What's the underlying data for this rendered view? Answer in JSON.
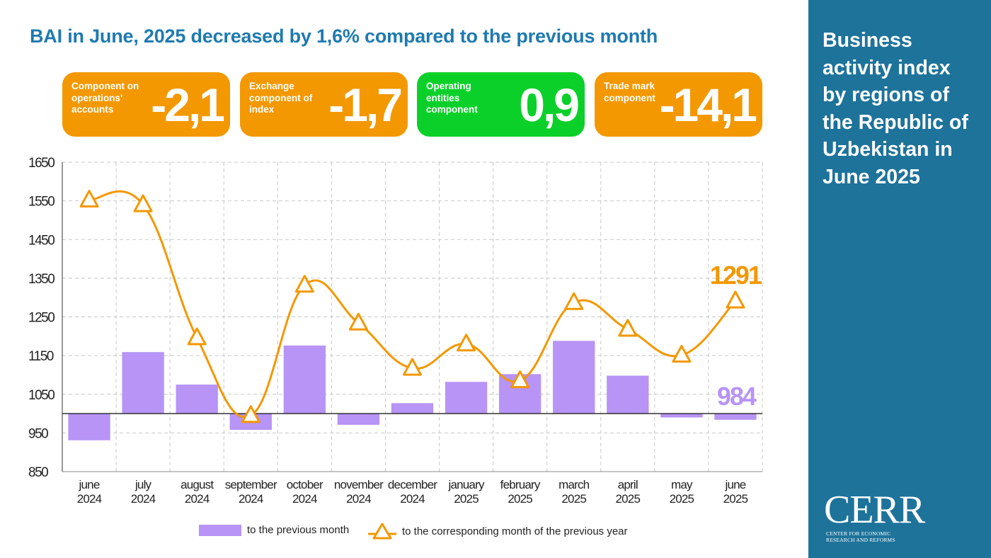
{
  "headline": "BAI in June, 2025 decreased by 1,6% compared to the previous month",
  "cards": [
    {
      "label": "Component on operations' accounts",
      "value": "-2,1",
      "color": "#f39800"
    },
    {
      "label": "Exchange component of index",
      "value": "-1,7",
      "color": "#f39800"
    },
    {
      "label": "Operating entities component",
      "value": "0,9",
      "color": "#0cd02a"
    },
    {
      "label": "Trade mark component",
      "value": "-14,1",
      "color": "#f39800"
    }
  ],
  "sidebar": {
    "title": "Business activity index by regions of the Republic of Uzbekistan in June 2025",
    "background": "#1e739a",
    "logo": {
      "word": "CERR",
      "subtitle": "CENTER FOR ECONOMIC RESEARCH AND REFORMS"
    }
  },
  "legend": {
    "bars": "to the previous month",
    "line": "to the corresponding month of the previous year"
  },
  "chart_data": {
    "type": "bar",
    "categories": [
      [
        "june",
        "2024"
      ],
      [
        "july",
        "2024"
      ],
      [
        "august",
        "2024"
      ],
      [
        "september",
        "2024"
      ],
      [
        "october",
        "2024"
      ],
      [
        "november",
        "2024"
      ],
      [
        "december",
        "2024"
      ],
      [
        "january",
        "2025"
      ],
      [
        "february",
        "2025"
      ],
      [
        "march",
        "2025"
      ],
      [
        "april",
        "2025"
      ],
      [
        "may",
        "2025"
      ],
      [
        "june",
        "2025"
      ]
    ],
    "series": [
      {
        "name": "to the previous month",
        "type": "bar",
        "color": "#b794f6",
        "values": [
          931,
          1159,
          1075,
          958,
          1176,
          971,
          1027,
          1082,
          1102,
          1188,
          1098,
          990,
          984
        ]
      },
      {
        "name": "to the corresponding month of the previous year",
        "type": "line",
        "marker": "triangle",
        "color": "#f39800",
        "values": [
          1552,
          1540,
          1196,
          995,
          1332,
          1234,
          1117,
          1180,
          1085,
          1287,
          1218,
          1151,
          1291
        ]
      }
    ],
    "baseline": 1000,
    "ylim": [
      850,
      1650
    ],
    "yticks": [
      1650,
      1550,
      1450,
      1350,
      1250,
      1150,
      1050,
      950,
      850
    ],
    "annotations": [
      {
        "text": "1291",
        "series": "to the corresponding month of the previous year",
        "color": "#f39800"
      },
      {
        "text": "984",
        "series": "to the previous month",
        "color": "#b794f6"
      }
    ],
    "grid": true,
    "legend_position": "bottom"
  }
}
